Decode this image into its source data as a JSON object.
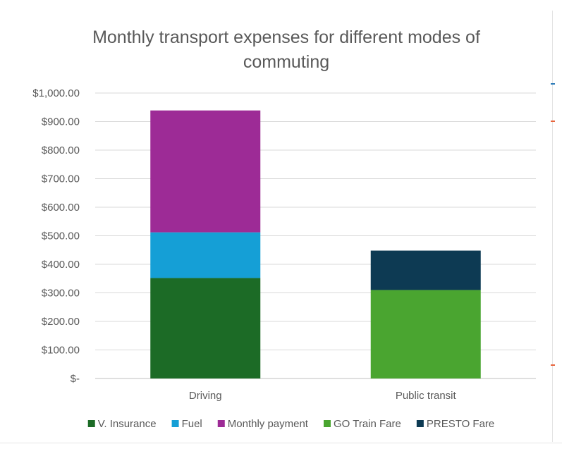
{
  "chart_data": {
    "type": "bar",
    "stacked": true,
    "title_lines": [
      "Monthly transport expenses for different modes of",
      "commuting"
    ],
    "categories": [
      "Driving",
      "Public transit"
    ],
    "series": [
      {
        "name": "V. Insurance",
        "color": "#1c6b26",
        "values": [
          352,
          0
        ]
      },
      {
        "name": "Fuel",
        "color": "#159fd6",
        "values": [
          160,
          0
        ]
      },
      {
        "name": "Monthly payment",
        "color": "#9d2b96",
        "values": [
          427,
          0
        ]
      },
      {
        "name": "GO Train Fare",
        "color": "#4aa530",
        "values": [
          0,
          310
        ]
      },
      {
        "name": "PRESTO Fare",
        "color": "#0d3a53",
        "values": [
          0,
          138
        ]
      }
    ],
    "ylim": [
      0,
      1000
    ],
    "yticks": [
      0,
      100,
      200,
      300,
      400,
      500,
      600,
      700,
      800,
      900,
      1000
    ],
    "ytick_labels": [
      "$-",
      "$100.00",
      "$200.00",
      "$300.00",
      "$400.00",
      "$500.00",
      "$600.00",
      "$700.00",
      "$800.00",
      "$900.00",
      "$1,000.00"
    ],
    "legend_position": "bottom",
    "grid": true
  }
}
